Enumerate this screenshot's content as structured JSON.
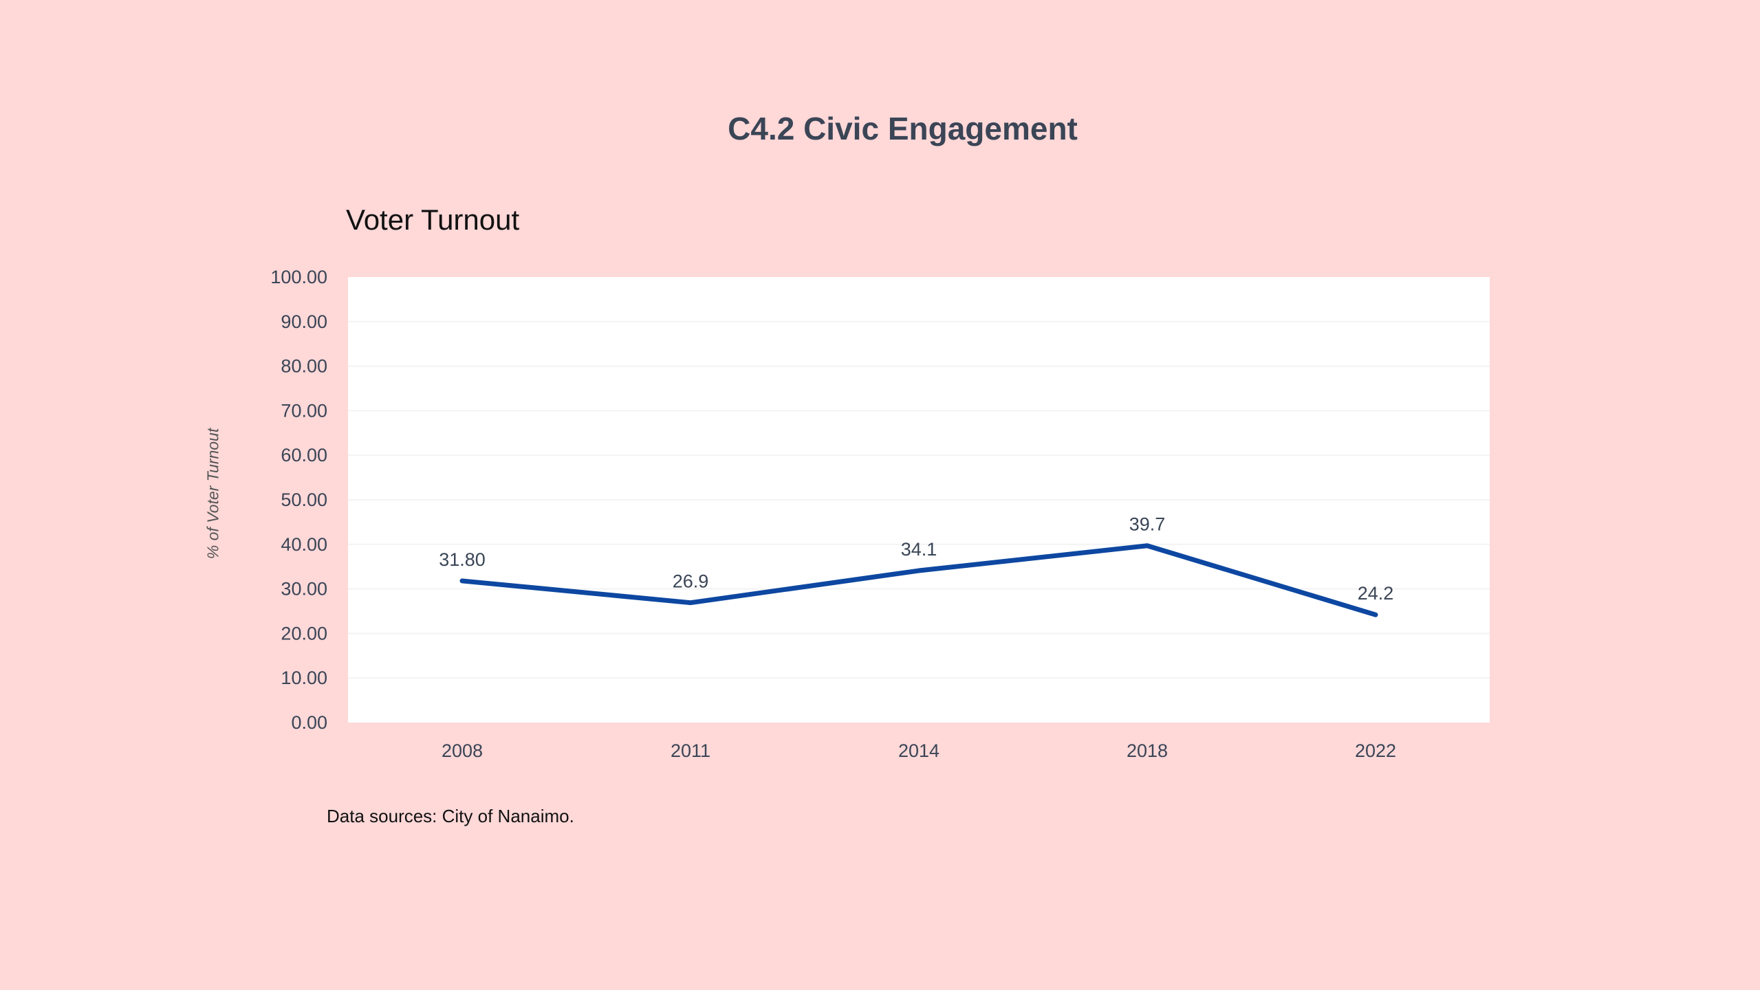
{
  "page": {
    "title": "C4.2 Civic Engagement",
    "source": "Data sources: City of Nanaimo."
  },
  "chart_data": {
    "type": "line",
    "title": "Voter Turnout",
    "xlabel": "",
    "ylabel": "% of Voter Turnout",
    "categories": [
      "2008",
      "2011",
      "2014",
      "2018",
      "2022"
    ],
    "values": [
      31.8,
      26.9,
      34.1,
      39.7,
      24.2
    ],
    "data_labels": [
      "31.80",
      "26.9",
      "34.1",
      "39.7",
      "24.2"
    ],
    "ylim": [
      0,
      100
    ],
    "yticks": [
      "0.00",
      "10.00",
      "20.00",
      "30.00",
      "40.00",
      "50.00",
      "60.00",
      "70.00",
      "80.00",
      "90.00",
      "100.00"
    ],
    "grid": true,
    "legend": "none",
    "colors": {
      "line": "#0D47A1",
      "background": "#FFD8D8",
      "plot": "#FFFFFF",
      "grid": "#F3F3F3"
    }
  }
}
